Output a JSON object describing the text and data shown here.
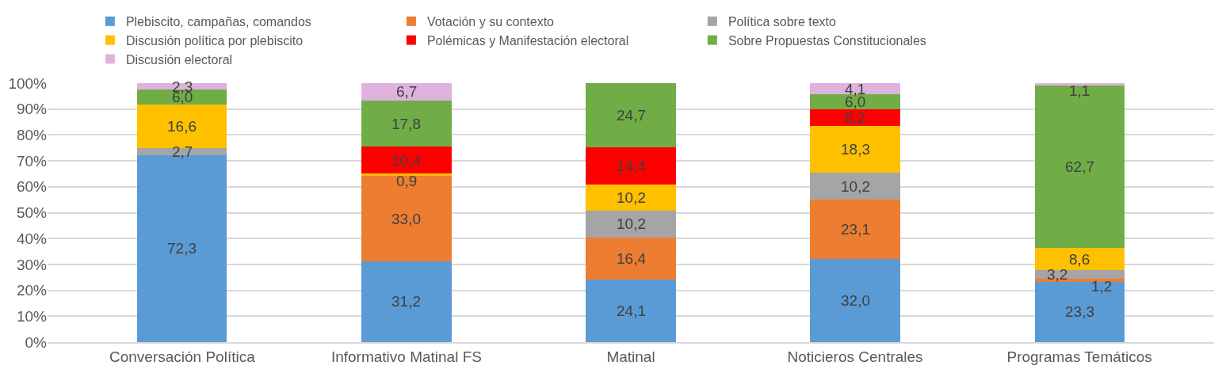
{
  "chart_data": {
    "type": "bar",
    "stacked": true,
    "categories": [
      "Conversación Política",
      "Informativo Matinal FS",
      "Matinal",
      "Noticieros Centrales",
      "Programas Temáticos"
    ],
    "series": [
      {
        "name": "Plebiscito, campañas, comandos",
        "color": "#5b9bd5",
        "values": [
          72.3,
          31.2,
          24.1,
          32.0,
          23.3
        ],
        "value_labels": [
          "72,3",
          "31,2",
          "24,1",
          "32,0",
          "23,3"
        ]
      },
      {
        "name": "Votación y su contexto",
        "color": "#ed7d31",
        "values": [
          null,
          33.0,
          16.4,
          23.1,
          1.2
        ],
        "value_labels": [
          null,
          "33,0",
          "16,4",
          "23,1",
          "1,2"
        ]
      },
      {
        "name": "Política sobre texto",
        "color": "#a5a5a5",
        "values": [
          2.7,
          null,
          10.2,
          10.2,
          3.2
        ],
        "value_labels": [
          "2,7",
          null,
          "10,2",
          "10,2",
          "3,2"
        ]
      },
      {
        "name": "Discusión política por plebiscito",
        "color": "#ffc000",
        "values": [
          16.6,
          0.9,
          10.2,
          18.3,
          8.6
        ],
        "value_labels": [
          "16,6",
          "0,9",
          "10,2",
          "18,3",
          "8,6"
        ]
      },
      {
        "name": "Polémicas y Manifestación electoral",
        "color": "#ff0000",
        "values": [
          null,
          10.4,
          14.4,
          6.2,
          null
        ],
        "value_labels": [
          null,
          "10,4",
          "14,4",
          "6,2",
          null
        ]
      },
      {
        "name": "Sobre Propuestas Constitucionales",
        "color": "#70ad47",
        "values": [
          6.0,
          17.8,
          24.7,
          6.0,
          62.7
        ],
        "value_labels": [
          "6,0",
          "17,8",
          "24,7",
          "6,0",
          "62,7"
        ]
      },
      {
        "name": "Discusión electoral",
        "color": "#dfb2dd",
        "values": [
          2.3,
          6.7,
          null,
          4.1,
          1.1
        ],
        "value_labels": [
          "2,3",
          "6,7",
          null,
          "4,1",
          "1,1"
        ]
      }
    ],
    "ylim": [
      0,
      100
    ],
    "yticks": [
      {
        "value": 0,
        "label": "0%"
      },
      {
        "value": 10,
        "label": "10%"
      },
      {
        "value": 20,
        "label": "20%"
      },
      {
        "value": 30,
        "label": "30%"
      },
      {
        "value": 40,
        "label": "40%"
      },
      {
        "value": 50,
        "label": "50%"
      },
      {
        "value": 60,
        "label": "60%"
      },
      {
        "value": 70,
        "label": "70%"
      },
      {
        "value": 80,
        "label": "80%"
      },
      {
        "value": 90,
        "label": "90%"
      },
      {
        "value": 100,
        "label": "100%"
      }
    ],
    "grid": "y",
    "legend": "top"
  }
}
